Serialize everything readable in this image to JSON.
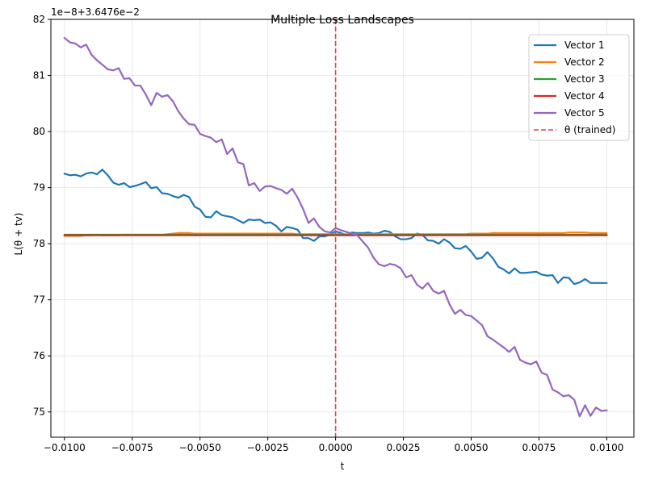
{
  "chart_data": {
    "type": "line",
    "title": "Multiple Loss Landscapes",
    "xlabel": "t",
    "ylabel": "L(θ + tv)",
    "offset_label": "1e−8+3.6476e−2",
    "xlim": [
      -0.0105,
      0.011
    ],
    "ylim": [
      74.55,
      82.0
    ],
    "grid": true,
    "legend_position": "top-right",
    "x_ticks": [
      -0.01,
      -0.0075,
      -0.005,
      -0.0025,
      0.0,
      0.0025,
      0.005,
      0.0075,
      0.01
    ],
    "x_tick_labels": [
      "−0.0100",
      "−0.0075",
      "−0.0050",
      "−0.0025",
      "0.0000",
      "0.0025",
      "0.0050",
      "0.0075",
      "0.0100"
    ],
    "y_ticks": [
      75,
      76,
      77,
      78,
      79,
      80,
      81,
      82
    ],
    "y_tick_labels": [
      "75",
      "76",
      "77",
      "78",
      "79",
      "80",
      "81",
      "82"
    ],
    "x_range": [
      -0.01,
      0.01
    ],
    "n_points": 101,
    "vline": {
      "x": 0.0,
      "label": "θ (trained)",
      "color": "#e8443c"
    },
    "series": [
      {
        "name": "Vector 1",
        "color": "#1f77b4",
        "values": [
          79.25,
          79.22,
          79.23,
          79.2,
          79.25,
          79.27,
          79.24,
          79.32,
          79.22,
          79.09,
          79.05,
          79.08,
          79.01,
          79.03,
          79.06,
          79.1,
          78.99,
          79.01,
          78.9,
          78.89,
          78.85,
          78.82,
          78.87,
          78.83,
          78.66,
          78.61,
          78.48,
          78.47,
          78.58,
          78.51,
          78.49,
          78.47,
          78.42,
          78.37,
          78.43,
          78.42,
          78.43,
          78.37,
          78.38,
          78.32,
          78.22,
          78.3,
          78.28,
          78.25,
          78.1,
          78.1,
          78.05,
          78.13,
          78.13,
          78.17,
          78.22,
          78.19,
          78.15,
          78.2,
          78.19,
          78.19,
          78.2,
          78.18,
          78.19,
          78.23,
          78.21,
          78.13,
          78.08,
          78.08,
          78.1,
          78.18,
          78.16,
          78.06,
          78.05,
          78.0,
          78.08,
          78.02,
          77.92,
          77.91,
          77.96,
          77.86,
          77.73,
          77.75,
          77.85,
          77.74,
          77.59,
          77.54,
          77.47,
          77.56,
          77.48,
          77.48,
          77.49,
          77.5,
          77.45,
          77.43,
          77.44,
          77.3,
          77.4,
          77.39,
          77.28,
          77.31,
          77.37,
          77.3,
          77.3,
          77.3,
          77.3
        ]
      },
      {
        "name": "Vector 2",
        "color": "#ff7f0e",
        "values": [
          78.14,
          78.14,
          78.14,
          78.14,
          78.15,
          78.15,
          78.16,
          78.15,
          78.15,
          78.15,
          78.15,
          78.16,
          78.16,
          78.16,
          78.16,
          78.16,
          78.16,
          78.16,
          78.16,
          78.17,
          78.18,
          78.19,
          78.19,
          78.19,
          78.18,
          78.18,
          78.18,
          78.18,
          78.18,
          78.18,
          78.18,
          78.18,
          78.18,
          78.18,
          78.18,
          78.18,
          78.18,
          78.18,
          78.18,
          78.18,
          78.18,
          78.18,
          78.18,
          78.17,
          78.17,
          78.17,
          78.17,
          78.17,
          78.17,
          78.17,
          78.17,
          78.17,
          78.17,
          78.17,
          78.17,
          78.17,
          78.17,
          78.17,
          78.17,
          78.17,
          78.17,
          78.17,
          78.17,
          78.17,
          78.17,
          78.17,
          78.17,
          78.17,
          78.17,
          78.17,
          78.17,
          78.17,
          78.17,
          78.17,
          78.17,
          78.18,
          78.18,
          78.18,
          78.18,
          78.19,
          78.19,
          78.19,
          78.19,
          78.19,
          78.19,
          78.19,
          78.19,
          78.19,
          78.19,
          78.19,
          78.19,
          78.19,
          78.19,
          78.2,
          78.2,
          78.2,
          78.2,
          78.19,
          78.19,
          78.19,
          78.19
        ]
      },
      {
        "name": "Vector 3",
        "color": "#2ca02c",
        "values": [
          78.16,
          78.16,
          78.16,
          78.16,
          78.16,
          78.16,
          78.16,
          78.16,
          78.16,
          78.16,
          78.16,
          78.16,
          78.16,
          78.16,
          78.16,
          78.16,
          78.16,
          78.16,
          78.16,
          78.16,
          78.16,
          78.16,
          78.16,
          78.16,
          78.16,
          78.16,
          78.16,
          78.16,
          78.16,
          78.16,
          78.16,
          78.16,
          78.16,
          78.16,
          78.16,
          78.16,
          78.16,
          78.16,
          78.16,
          78.16,
          78.16,
          78.16,
          78.16,
          78.16,
          78.16,
          78.16,
          78.16,
          78.16,
          78.16,
          78.16,
          78.16,
          78.16,
          78.16,
          78.16,
          78.16,
          78.16,
          78.16,
          78.16,
          78.16,
          78.16,
          78.16,
          78.16,
          78.16,
          78.16,
          78.16,
          78.16,
          78.16,
          78.16,
          78.16,
          78.16,
          78.16,
          78.16,
          78.16,
          78.16,
          78.16,
          78.16,
          78.16,
          78.16,
          78.16,
          78.16,
          78.16,
          78.16,
          78.16,
          78.16,
          78.16,
          78.16,
          78.16,
          78.16,
          78.16,
          78.16,
          78.16,
          78.16,
          78.16,
          78.16,
          78.16,
          78.16,
          78.16,
          78.16,
          78.16,
          78.16,
          78.16
        ]
      },
      {
        "name": "Vector 4",
        "color": "#d62728",
        "values": [
          78.15,
          78.15,
          78.15,
          78.15,
          78.15,
          78.15,
          78.15,
          78.15,
          78.15,
          78.15,
          78.15,
          78.15,
          78.15,
          78.15,
          78.15,
          78.15,
          78.15,
          78.15,
          78.15,
          78.15,
          78.15,
          78.15,
          78.15,
          78.15,
          78.15,
          78.15,
          78.15,
          78.15,
          78.15,
          78.15,
          78.15,
          78.15,
          78.15,
          78.15,
          78.15,
          78.15,
          78.15,
          78.15,
          78.15,
          78.15,
          78.15,
          78.15,
          78.15,
          78.15,
          78.15,
          78.15,
          78.15,
          78.15,
          78.15,
          78.15,
          78.15,
          78.15,
          78.15,
          78.15,
          78.15,
          78.15,
          78.15,
          78.15,
          78.15,
          78.15,
          78.15,
          78.15,
          78.15,
          78.15,
          78.15,
          78.15,
          78.15,
          78.15,
          78.15,
          78.15,
          78.15,
          78.15,
          78.15,
          78.15,
          78.15,
          78.15,
          78.15,
          78.15,
          78.15,
          78.15,
          78.15,
          78.15,
          78.15,
          78.15,
          78.15,
          78.15,
          78.15,
          78.15,
          78.15,
          78.15,
          78.15,
          78.15,
          78.15,
          78.15,
          78.15,
          78.15,
          78.15,
          78.15,
          78.15,
          78.15,
          78.15
        ]
      },
      {
        "name": "Vector 5",
        "color": "#9467bd",
        "values": [
          81.67,
          81.59,
          81.57,
          81.5,
          81.55,
          81.37,
          81.27,
          81.19,
          81.11,
          81.09,
          81.13,
          80.94,
          80.95,
          80.82,
          80.82,
          80.66,
          80.47,
          80.69,
          80.62,
          80.65,
          80.54,
          80.36,
          80.23,
          80.13,
          80.12,
          79.96,
          79.92,
          79.89,
          79.81,
          79.86,
          79.6,
          79.7,
          79.45,
          79.42,
          79.04,
          79.08,
          78.94,
          79.02,
          79.03,
          78.99,
          78.96,
          78.89,
          78.98,
          78.82,
          78.62,
          78.37,
          78.45,
          78.3,
          78.22,
          78.2,
          78.28,
          78.24,
          78.21,
          78.18,
          78.15,
          78.04,
          77.93,
          77.75,
          77.63,
          77.6,
          77.64,
          77.62,
          77.56,
          77.4,
          77.44,
          77.27,
          77.2,
          77.3,
          77.16,
          77.11,
          77.16,
          76.92,
          76.75,
          76.82,
          76.73,
          76.71,
          76.63,
          76.55,
          76.35,
          76.29,
          76.22,
          76.15,
          76.07,
          76.16,
          75.93,
          75.88,
          75.85,
          75.9,
          75.7,
          75.66,
          75.4,
          75.35,
          75.28,
          75.3,
          75.22,
          74.92,
          75.12,
          74.93,
          75.08,
          75.02,
          75.03
        ]
      }
    ]
  }
}
